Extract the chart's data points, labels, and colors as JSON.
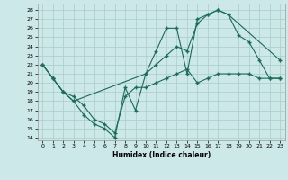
{
  "xlabel": "Humidex (Indice chaleur)",
  "bg_color": "#cce8e8",
  "grid_color": "#aacccc",
  "line_color": "#1a6b5a",
  "xlim": [
    -0.5,
    23.5
  ],
  "ylim": [
    13.7,
    28.7
  ],
  "yticks": [
    14,
    15,
    16,
    17,
    18,
    19,
    20,
    21,
    22,
    23,
    24,
    25,
    26,
    27,
    28
  ],
  "xticks": [
    0,
    1,
    2,
    3,
    4,
    5,
    6,
    7,
    8,
    9,
    10,
    11,
    12,
    13,
    14,
    15,
    16,
    17,
    18,
    19,
    20,
    21,
    22,
    23
  ],
  "line1_x": [
    0,
    1,
    2,
    3,
    10,
    11,
    12,
    13,
    14,
    15,
    16,
    17,
    18,
    19,
    20,
    21,
    22,
    23
  ],
  "line1_y": [
    22,
    20.5,
    19,
    18,
    21.0,
    22.0,
    23.0,
    24.0,
    23.5,
    26.5,
    27.5,
    28.0,
    27.5,
    25.2,
    24.5,
    22.5,
    20.5,
    20.5
  ],
  "line2_x": [
    0,
    1,
    2,
    3,
    4,
    5,
    6,
    7,
    8,
    9,
    10,
    11,
    12,
    13,
    14,
    15,
    16,
    17,
    18,
    23
  ],
  "line2_y": [
    22,
    20.5,
    19.0,
    18.0,
    16.5,
    15.5,
    15.0,
    14.0,
    19.5,
    17.0,
    21.0,
    23.5,
    26.0,
    26.0,
    21.0,
    27.0,
    27.5,
    28.0,
    27.5,
    22.5
  ],
  "line3_x": [
    0,
    1,
    2,
    3,
    4,
    5,
    6,
    7,
    8,
    9,
    10,
    11,
    12,
    13,
    14,
    15,
    16,
    17,
    18,
    19,
    20,
    21,
    22,
    23
  ],
  "line3_y": [
    22,
    20.5,
    19.0,
    18.5,
    17.5,
    16.0,
    15.5,
    14.5,
    18.5,
    19.5,
    19.5,
    20.0,
    20.5,
    21.0,
    21.5,
    20.0,
    20.5,
    21.0,
    21.0,
    21.0,
    21.0,
    20.5,
    20.5,
    20.5
  ]
}
